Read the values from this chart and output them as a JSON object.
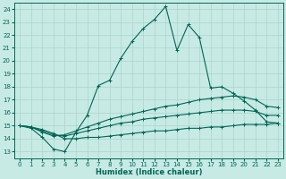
{
  "xlabel": "Humidex (Indice chaleur)",
  "ylabel": "",
  "xlim": [
    -0.5,
    23.5
  ],
  "ylim": [
    12.5,
    24.5
  ],
  "yticks": [
    13,
    14,
    15,
    16,
    17,
    18,
    19,
    20,
    21,
    22,
    23,
    24
  ],
  "xticks": [
    0,
    1,
    2,
    3,
    4,
    5,
    6,
    7,
    8,
    9,
    10,
    11,
    12,
    13,
    14,
    15,
    16,
    17,
    18,
    19,
    20,
    21,
    22,
    23
  ],
  "bg_color": "#c8eae4",
  "line_color": "#006655",
  "grid_color": "#a8d5cc",
  "lines": [
    {
      "x": [
        0,
        1,
        2,
        3,
        4,
        5,
        6,
        7,
        8,
        9,
        10,
        11,
        12,
        13,
        14,
        15,
        16,
        17,
        18,
        19,
        20,
        21,
        22,
        23
      ],
      "y": [
        15.0,
        14.8,
        14.1,
        13.2,
        13.0,
        14.5,
        15.8,
        18.1,
        18.5,
        20.2,
        21.5,
        22.5,
        23.2,
        24.2,
        20.8,
        22.8,
        21.8,
        17.9,
        18.0,
        17.5,
        16.9,
        16.2,
        15.3,
        15.2
      ]
    },
    {
      "x": [
        0,
        1,
        2,
        3,
        4,
        5,
        6,
        7,
        8,
        9,
        10,
        11,
        12,
        13,
        14,
        15,
        16,
        17,
        18,
        19,
        20,
        21,
        22,
        23
      ],
      "y": [
        15.0,
        14.9,
        14.5,
        14.2,
        14.3,
        14.6,
        14.9,
        15.2,
        15.5,
        15.7,
        15.9,
        16.1,
        16.3,
        16.5,
        16.6,
        16.8,
        17.0,
        17.1,
        17.2,
        17.3,
        17.2,
        17.0,
        16.5,
        16.4
      ]
    },
    {
      "x": [
        0,
        1,
        2,
        3,
        4,
        5,
        6,
        7,
        8,
        9,
        10,
        11,
        12,
        13,
        14,
        15,
        16,
        17,
        18,
        19,
        20,
        21,
        22,
        23
      ],
      "y": [
        15.0,
        14.9,
        14.6,
        14.3,
        14.2,
        14.4,
        14.6,
        14.8,
        15.0,
        15.2,
        15.3,
        15.5,
        15.6,
        15.7,
        15.8,
        15.9,
        16.0,
        16.1,
        16.2,
        16.2,
        16.2,
        16.1,
        15.8,
        15.8
      ]
    },
    {
      "x": [
        0,
        1,
        2,
        3,
        4,
        5,
        6,
        7,
        8,
        9,
        10,
        11,
        12,
        13,
        14,
        15,
        16,
        17,
        18,
        19,
        20,
        21,
        22,
        23
      ],
      "y": [
        15.0,
        14.9,
        14.7,
        14.4,
        14.0,
        14.0,
        14.1,
        14.1,
        14.2,
        14.3,
        14.4,
        14.5,
        14.6,
        14.6,
        14.7,
        14.8,
        14.8,
        14.9,
        14.9,
        15.0,
        15.1,
        15.1,
        15.1,
        15.2
      ]
    }
  ]
}
